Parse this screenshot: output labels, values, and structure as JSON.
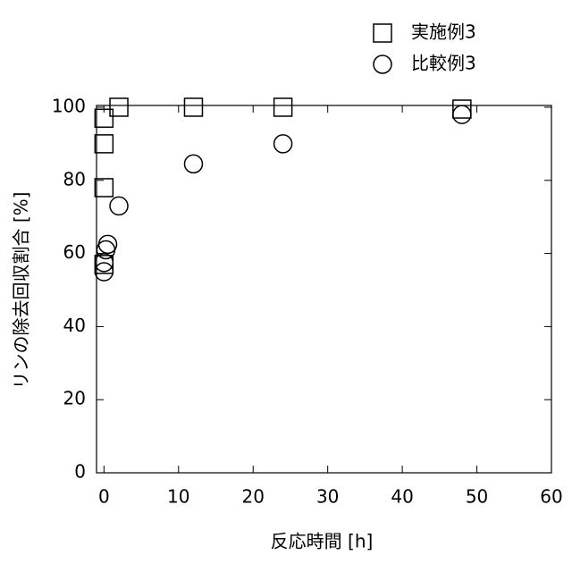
{
  "chart_data": {
    "type": "scatter",
    "x_label": "反応時間 [h]",
    "y_label": "リンの除去回収割合 [%]",
    "xlim": [
      -1,
      60
    ],
    "xticks": [
      0,
      10,
      20,
      30,
      40,
      50,
      60
    ],
    "ylim": [
      0,
      100
    ],
    "yticks": [
      0,
      20,
      40,
      60,
      80,
      100
    ],
    "legend": "top right",
    "series": [
      {
        "name": "実施例3",
        "color": "#000000",
        "marker": "square",
        "x": [
          0,
          0,
          0,
          0,
          2,
          12,
          24,
          48
        ],
        "values": [
          57,
          78,
          90,
          97,
          100,
          100,
          100,
          99.5
        ]
      },
      {
        "name": "比較例3",
        "color": "#000000",
        "marker": "circle",
        "x": [
          0,
          0,
          0.25,
          0.5,
          2,
          12,
          24,
          48
        ],
        "values": [
          55,
          57.5,
          61,
          62.5,
          73,
          84.5,
          90,
          98
        ]
      }
    ]
  }
}
